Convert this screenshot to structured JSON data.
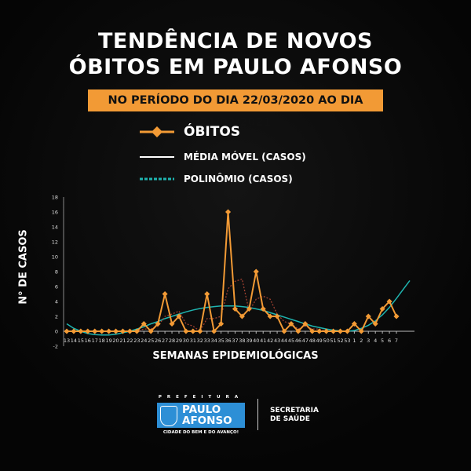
{
  "title_line1": "TENDÊNCIA DE NOVOS",
  "title_line2": "ÓBITOS EM PAULO AFONSO",
  "period": "NO PERÍODO DO DIA 22/03/2020 AO DIA 21/02/2021",
  "footer": {
    "prefeitura": "PREFEITURA",
    "city1": "PAULO",
    "city2": "AFONSO",
    "slogan": "CIDADE DO BEM E DO AVANÇO!",
    "sec1": "SECRETARIA",
    "sec2": "DE SAÚDE"
  },
  "chart_data": {
    "type": "line",
    "xlabel": "SEMANAS EPIDEMIOLÓGICAS",
    "ylabel": "N° DE CASOS",
    "ylim": [
      -2,
      18
    ],
    "yticks": [
      -2,
      0,
      2,
      4,
      6,
      8,
      10,
      12,
      14,
      16,
      18
    ],
    "categories": [
      "13",
      "14",
      "15",
      "16",
      "17",
      "18",
      "19",
      "20",
      "21",
      "22",
      "23",
      "24",
      "25",
      "26",
      "27",
      "28",
      "29",
      "30",
      "31",
      "32",
      "33",
      "34",
      "35",
      "36",
      "37",
      "38",
      "39",
      "40",
      "41",
      "42",
      "43",
      "44",
      "45",
      "46",
      "47",
      "48",
      "49",
      "50",
      "51",
      "52",
      "53",
      "1",
      "2",
      "3",
      "4",
      "5",
      "6",
      "7"
    ],
    "series": [
      {
        "name": "ÓBITOS",
        "color": "#f29a35",
        "style": "line-diamond",
        "values": [
          0,
          0,
          0,
          0,
          0,
          0,
          0,
          0,
          0,
          0,
          0,
          1,
          0,
          1,
          5,
          1,
          2,
          0,
          0,
          0,
          5,
          0,
          1,
          16,
          3,
          2,
          3,
          8,
          3,
          2,
          2,
          0,
          1,
          0,
          1,
          0,
          0,
          0,
          0,
          0,
          0,
          1,
          0,
          2,
          1,
          3,
          4,
          2
        ]
      },
      {
        "name": "MÉDIA MÓVEL (CASOS)",
        "color": "#a04030",
        "style": "dotted",
        "values": [
          0,
          0,
          0,
          0,
          0,
          0,
          0,
          0,
          0,
          0,
          0,
          0.3,
          0.3,
          0.7,
          2,
          2.3,
          2.7,
          1,
          0.7,
          0,
          1.7,
          1.7,
          2,
          5.7,
          6.7,
          7,
          2.7,
          4.3,
          4.7,
          4.3,
          2.3,
          1.3,
          1,
          0.3,
          0.7,
          0.3,
          0.3,
          0,
          0,
          0,
          0,
          null,
          null,
          null,
          null,
          null,
          null,
          null
        ]
      },
      {
        "name": "POLINÔMIO (CASOS)",
        "color": "#1fb5b0",
        "style": "curve",
        "values": [
          1.0,
          0.4,
          0,
          -0.3,
          -0.45,
          -0.5,
          -0.5,
          -0.4,
          -0.2,
          0,
          0.3,
          0.6,
          1.0,
          1.3,
          1.7,
          2.0,
          2.3,
          2.6,
          2.85,
          3.05,
          3.2,
          3.3,
          3.4,
          3.4,
          3.4,
          3.3,
          3.2,
          3.0,
          2.8,
          2.5,
          2.2,
          1.9,
          1.6,
          1.3,
          1.0,
          0.7,
          0.5,
          0.3,
          0.15,
          0.05,
          0,
          0.1,
          0.4,
          0.8,
          1.4,
          2.2,
          3.2,
          4.4
        ],
        "trend_end": 6.8
      }
    ]
  }
}
